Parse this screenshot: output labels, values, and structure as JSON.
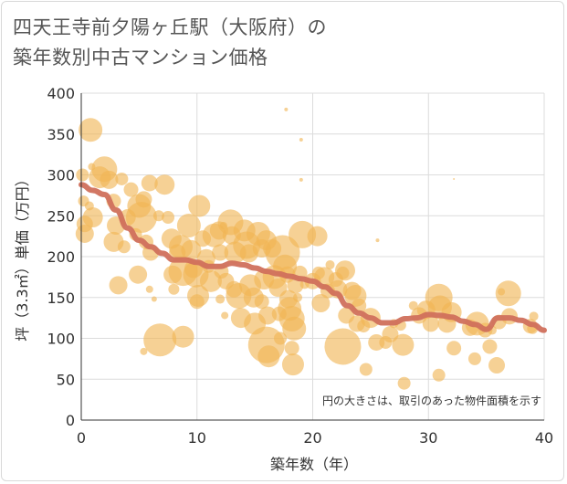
{
  "title_line1": "四天王寺前夕陽ヶ丘駅（大阪府）の",
  "title_line2": "築年数別中古マンション価格",
  "chart_data": {
    "type": "scatter",
    "title": "四天王寺前夕陽ヶ丘駅（大阪府）の 築年数別中古マンション価格",
    "xlabel": "築年数（年）",
    "ylabel": "坪（3.3㎡）単価（万円）",
    "xlim": [
      0,
      40
    ],
    "ylim": [
      0,
      400
    ],
    "x_ticks": [
      0,
      10,
      20,
      30,
      40
    ],
    "y_ticks": [
      0,
      50,
      100,
      150,
      200,
      250,
      300,
      350,
      400
    ],
    "note": "円の大きさは、取引のあった物件面積を示す",
    "grid": true,
    "bubble_color": "#f0b454",
    "trend_color": "#d0705c",
    "bubbles": [
      {
        "x": 0.1,
        "y": 300,
        "s": 7
      },
      {
        "x": 0.2,
        "y": 268,
        "s": 6
      },
      {
        "x": 0.3,
        "y": 240,
        "s": 9
      },
      {
        "x": 0.3,
        "y": 228,
        "s": 10
      },
      {
        "x": 0.8,
        "y": 355,
        "s": 13
      },
      {
        "x": 0.9,
        "y": 310,
        "s": 4
      },
      {
        "x": 1.0,
        "y": 248,
        "s": 11
      },
      {
        "x": 0.7,
        "y": 262,
        "s": 5
      },
      {
        "x": 1.6,
        "y": 297,
        "s": 12
      },
      {
        "x": 2.0,
        "y": 307,
        "s": 14
      },
      {
        "x": 2.4,
        "y": 294,
        "s": 10
      },
      {
        "x": 2.8,
        "y": 268,
        "s": 8
      },
      {
        "x": 3.0,
        "y": 238,
        "s": 10
      },
      {
        "x": 2.8,
        "y": 218,
        "s": 11
      },
      {
        "x": 3.5,
        "y": 295,
        "s": 7
      },
      {
        "x": 3.2,
        "y": 165,
        "s": 10
      },
      {
        "x": 3.7,
        "y": 212,
        "s": 7
      },
      {
        "x": 4.0,
        "y": 248,
        "s": 9
      },
      {
        "x": 4.3,
        "y": 282,
        "s": 8
      },
      {
        "x": 4.7,
        "y": 227,
        "s": 7
      },
      {
        "x": 5.0,
        "y": 262,
        "s": 13
      },
      {
        "x": 5.2,
        "y": 248,
        "s": 17
      },
      {
        "x": 5.4,
        "y": 270,
        "s": 9
      },
      {
        "x": 4.9,
        "y": 178,
        "s": 10
      },
      {
        "x": 5.6,
        "y": 218,
        "s": 8
      },
      {
        "x": 5.9,
        "y": 290,
        "s": 9
      },
      {
        "x": 6.0,
        "y": 205,
        "s": 9
      },
      {
        "x": 5.9,
        "y": 160,
        "s": 4
      },
      {
        "x": 6.3,
        "y": 148,
        "s": 3
      },
      {
        "x": 5.4,
        "y": 84,
        "s": 4
      },
      {
        "x": 6.7,
        "y": 250,
        "s": 6
      },
      {
        "x": 7.2,
        "y": 288,
        "s": 11
      },
      {
        "x": 7.5,
        "y": 248,
        "s": 7
      },
      {
        "x": 6.8,
        "y": 98,
        "s": 18
      },
      {
        "x": 7.8,
        "y": 222,
        "s": 11
      },
      {
        "x": 7.9,
        "y": 178,
        "s": 10
      },
      {
        "x": 8.0,
        "y": 160,
        "s": 6
      },
      {
        "x": 8.3,
        "y": 205,
        "s": 9
      },
      {
        "x": 8.6,
        "y": 212,
        "s": 13
      },
      {
        "x": 8.8,
        "y": 182,
        "s": 16
      },
      {
        "x": 8.8,
        "y": 102,
        "s": 12
      },
      {
        "x": 9.3,
        "y": 238,
        "s": 13
      },
      {
        "x": 9.5,
        "y": 208,
        "s": 11
      },
      {
        "x": 9.7,
        "y": 185,
        "s": 10
      },
      {
        "x": 9.9,
        "y": 178,
        "s": 14
      },
      {
        "x": 10.1,
        "y": 152,
        "s": 12
      },
      {
        "x": 10.0,
        "y": 145,
        "s": 8
      },
      {
        "x": 10.2,
        "y": 262,
        "s": 12
      },
      {
        "x": 10.5,
        "y": 222,
        "s": 9
      },
      {
        "x": 10.8,
        "y": 198,
        "s": 10
      },
      {
        "x": 11.0,
        "y": 188,
        "s": 7
      },
      {
        "x": 11.2,
        "y": 170,
        "s": 12
      },
      {
        "x": 11.5,
        "y": 226,
        "s": 13
      },
      {
        "x": 11.9,
        "y": 232,
        "s": 10
      },
      {
        "x": 12.0,
        "y": 205,
        "s": 9
      },
      {
        "x": 12.1,
        "y": 182,
        "s": 8
      },
      {
        "x": 12.3,
        "y": 238,
        "s": 4
      },
      {
        "x": 12.0,
        "y": 148,
        "s": 5
      },
      {
        "x": 12.4,
        "y": 128,
        "s": 4
      },
      {
        "x": 12.5,
        "y": 170,
        "s": 9
      },
      {
        "x": 12.9,
        "y": 242,
        "s": 14
      },
      {
        "x": 13.0,
        "y": 226,
        "s": 10
      },
      {
        "x": 13.3,
        "y": 205,
        "s": 12
      },
      {
        "x": 13.2,
        "y": 160,
        "s": 9
      },
      {
        "x": 13.6,
        "y": 152,
        "s": 14
      },
      {
        "x": 13.8,
        "y": 125,
        "s": 11
      },
      {
        "x": 14.1,
        "y": 232,
        "s": 12
      },
      {
        "x": 14.3,
        "y": 214,
        "s": 15
      },
      {
        "x": 14.5,
        "y": 204,
        "s": 10
      },
      {
        "x": 14.6,
        "y": 165,
        "s": 12
      },
      {
        "x": 14.9,
        "y": 150,
        "s": 11
      },
      {
        "x": 15.0,
        "y": 118,
        "s": 12
      },
      {
        "x": 15.3,
        "y": 228,
        "s": 13
      },
      {
        "x": 15.6,
        "y": 210,
        "s": 10
      },
      {
        "x": 15.8,
        "y": 172,
        "s": 11
      },
      {
        "x": 15.6,
        "y": 145,
        "s": 8
      },
      {
        "x": 16.0,
        "y": 220,
        "s": 11
      },
      {
        "x": 16.1,
        "y": 128,
        "s": 10
      },
      {
        "x": 16.0,
        "y": 92,
        "s": 20
      },
      {
        "x": 16.2,
        "y": 78,
        "s": 12
      },
      {
        "x": 16.5,
        "y": 210,
        "s": 10
      },
      {
        "x": 16.7,
        "y": 175,
        "s": 13
      },
      {
        "x": 17.0,
        "y": 162,
        "s": 10
      },
      {
        "x": 17.1,
        "y": 130,
        "s": 8
      },
      {
        "x": 17.2,
        "y": 100,
        "s": 7
      },
      {
        "x": 17.4,
        "y": 205,
        "s": 19
      },
      {
        "x": 17.6,
        "y": 188,
        "s": 13
      },
      {
        "x": 17.7,
        "y": 380,
        "s": 2
      },
      {
        "x": 17.8,
        "y": 178,
        "s": 9
      },
      {
        "x": 17.9,
        "y": 148,
        "s": 10
      },
      {
        "x": 18.0,
        "y": 136,
        "s": 13
      },
      {
        "x": 18.2,
        "y": 124,
        "s": 14
      },
      {
        "x": 18.4,
        "y": 112,
        "s": 13
      },
      {
        "x": 18.2,
        "y": 88,
        "s": 8
      },
      {
        "x": 18.3,
        "y": 68,
        "s": 12
      },
      {
        "x": 18.5,
        "y": 165,
        "s": 9
      },
      {
        "x": 18.7,
        "y": 150,
        "s": 5
      },
      {
        "x": 18.9,
        "y": 180,
        "s": 8
      },
      {
        "x": 19.0,
        "y": 343,
        "s": 2
      },
      {
        "x": 19.0,
        "y": 294,
        "s": 2
      },
      {
        "x": 19.1,
        "y": 227,
        "s": 15
      },
      {
        "x": 19.3,
        "y": 166,
        "s": 5
      },
      {
        "x": 20.0,
        "y": 170,
        "s": 9
      },
      {
        "x": 20.4,
        "y": 225,
        "s": 11
      },
      {
        "x": 20.5,
        "y": 180,
        "s": 7
      },
      {
        "x": 20.7,
        "y": 143,
        "s": 10
      },
      {
        "x": 21.0,
        "y": 175,
        "s": 11
      },
      {
        "x": 21.3,
        "y": 158,
        "s": 8
      },
      {
        "x": 21.5,
        "y": 190,
        "s": 5
      },
      {
        "x": 22.0,
        "y": 172,
        "s": 8
      },
      {
        "x": 22.2,
        "y": 160,
        "s": 10
      },
      {
        "x": 22.6,
        "y": 180,
        "s": 7
      },
      {
        "x": 22.8,
        "y": 183,
        "s": 11
      },
      {
        "x": 22.6,
        "y": 90,
        "s": 20
      },
      {
        "x": 22.9,
        "y": 128,
        "s": 9
      },
      {
        "x": 23.4,
        "y": 158,
        "s": 10
      },
      {
        "x": 23.7,
        "y": 152,
        "s": 12
      },
      {
        "x": 23.8,
        "y": 118,
        "s": 9
      },
      {
        "x": 24.0,
        "y": 140,
        "s": 8
      },
      {
        "x": 24.4,
        "y": 115,
        "s": 7
      },
      {
        "x": 24.6,
        "y": 62,
        "s": 7
      },
      {
        "x": 25.0,
        "y": 125,
        "s": 11
      },
      {
        "x": 25.5,
        "y": 95,
        "s": 9
      },
      {
        "x": 25.6,
        "y": 220,
        "s": 2
      },
      {
        "x": 26.3,
        "y": 95,
        "s": 7
      },
      {
        "x": 26.7,
        "y": 105,
        "s": 9
      },
      {
        "x": 27.0,
        "y": 118,
        "s": 5
      },
      {
        "x": 27.6,
        "y": 116,
        "s": 6
      },
      {
        "x": 27.8,
        "y": 92,
        "s": 12
      },
      {
        "x": 27.9,
        "y": 45,
        "s": 7
      },
      {
        "x": 28.7,
        "y": 140,
        "s": 5
      },
      {
        "x": 29.2,
        "y": 128,
        "s": 9
      },
      {
        "x": 29.8,
        "y": 135,
        "s": 10
      },
      {
        "x": 30.2,
        "y": 118,
        "s": 9
      },
      {
        "x": 30.9,
        "y": 150,
        "s": 15
      },
      {
        "x": 31.0,
        "y": 138,
        "s": 13
      },
      {
        "x": 30.9,
        "y": 55,
        "s": 7
      },
      {
        "x": 31.6,
        "y": 118,
        "s": 10
      },
      {
        "x": 32.0,
        "y": 132,
        "s": 11
      },
      {
        "x": 32.2,
        "y": 295,
        "s": 1
      },
      {
        "x": 32.2,
        "y": 88,
        "s": 8
      },
      {
        "x": 33.6,
        "y": 113,
        "s": 9
      },
      {
        "x": 34.0,
        "y": 75,
        "s": 7
      },
      {
        "x": 34.2,
        "y": 118,
        "s": 13
      },
      {
        "x": 34.9,
        "y": 110,
        "s": 8
      },
      {
        "x": 35.3,
        "y": 90,
        "s": 8
      },
      {
        "x": 35.5,
        "y": 110,
        "s": 5
      },
      {
        "x": 35.9,
        "y": 67,
        "s": 9
      },
      {
        "x": 36.1,
        "y": 120,
        "s": 8
      },
      {
        "x": 36.3,
        "y": 157,
        "s": 4
      },
      {
        "x": 36.9,
        "y": 155,
        "s": 14
      },
      {
        "x": 37.0,
        "y": 127,
        "s": 9
      },
      {
        "x": 38.8,
        "y": 115,
        "s": 8
      },
      {
        "x": 39.1,
        "y": 127,
        "s": 5
      },
      {
        "x": 39.0,
        "y": 112,
        "s": 6
      }
    ],
    "trend": [
      [
        0,
        288
      ],
      [
        1,
        281
      ],
      [
        2,
        276
      ],
      [
        3,
        257
      ],
      [
        4,
        235
      ],
      [
        5,
        220
      ],
      [
        6,
        212
      ],
      [
        7,
        204
      ],
      [
        8,
        196
      ],
      [
        9,
        196
      ],
      [
        10,
        193
      ],
      [
        11,
        188
      ],
      [
        12,
        188
      ],
      [
        13,
        192
      ],
      [
        14,
        190
      ],
      [
        15,
        186
      ],
      [
        16,
        182
      ],
      [
        17,
        179
      ],
      [
        18,
        176
      ],
      [
        19,
        173
      ],
      [
        20,
        170
      ],
      [
        21,
        163
      ],
      [
        22,
        155
      ],
      [
        23,
        140
      ],
      [
        24,
        131
      ],
      [
        25,
        125
      ],
      [
        26,
        119
      ],
      [
        27,
        119
      ],
      [
        28,
        124
      ],
      [
        29,
        125
      ],
      [
        30,
        129
      ],
      [
        31,
        128
      ],
      [
        32,
        126
      ],
      [
        33,
        121
      ],
      [
        34,
        117
      ],
      [
        35,
        111
      ],
      [
        36,
        125
      ],
      [
        37,
        125
      ],
      [
        38,
        122
      ],
      [
        39,
        117
      ],
      [
        40,
        110
      ]
    ]
  }
}
